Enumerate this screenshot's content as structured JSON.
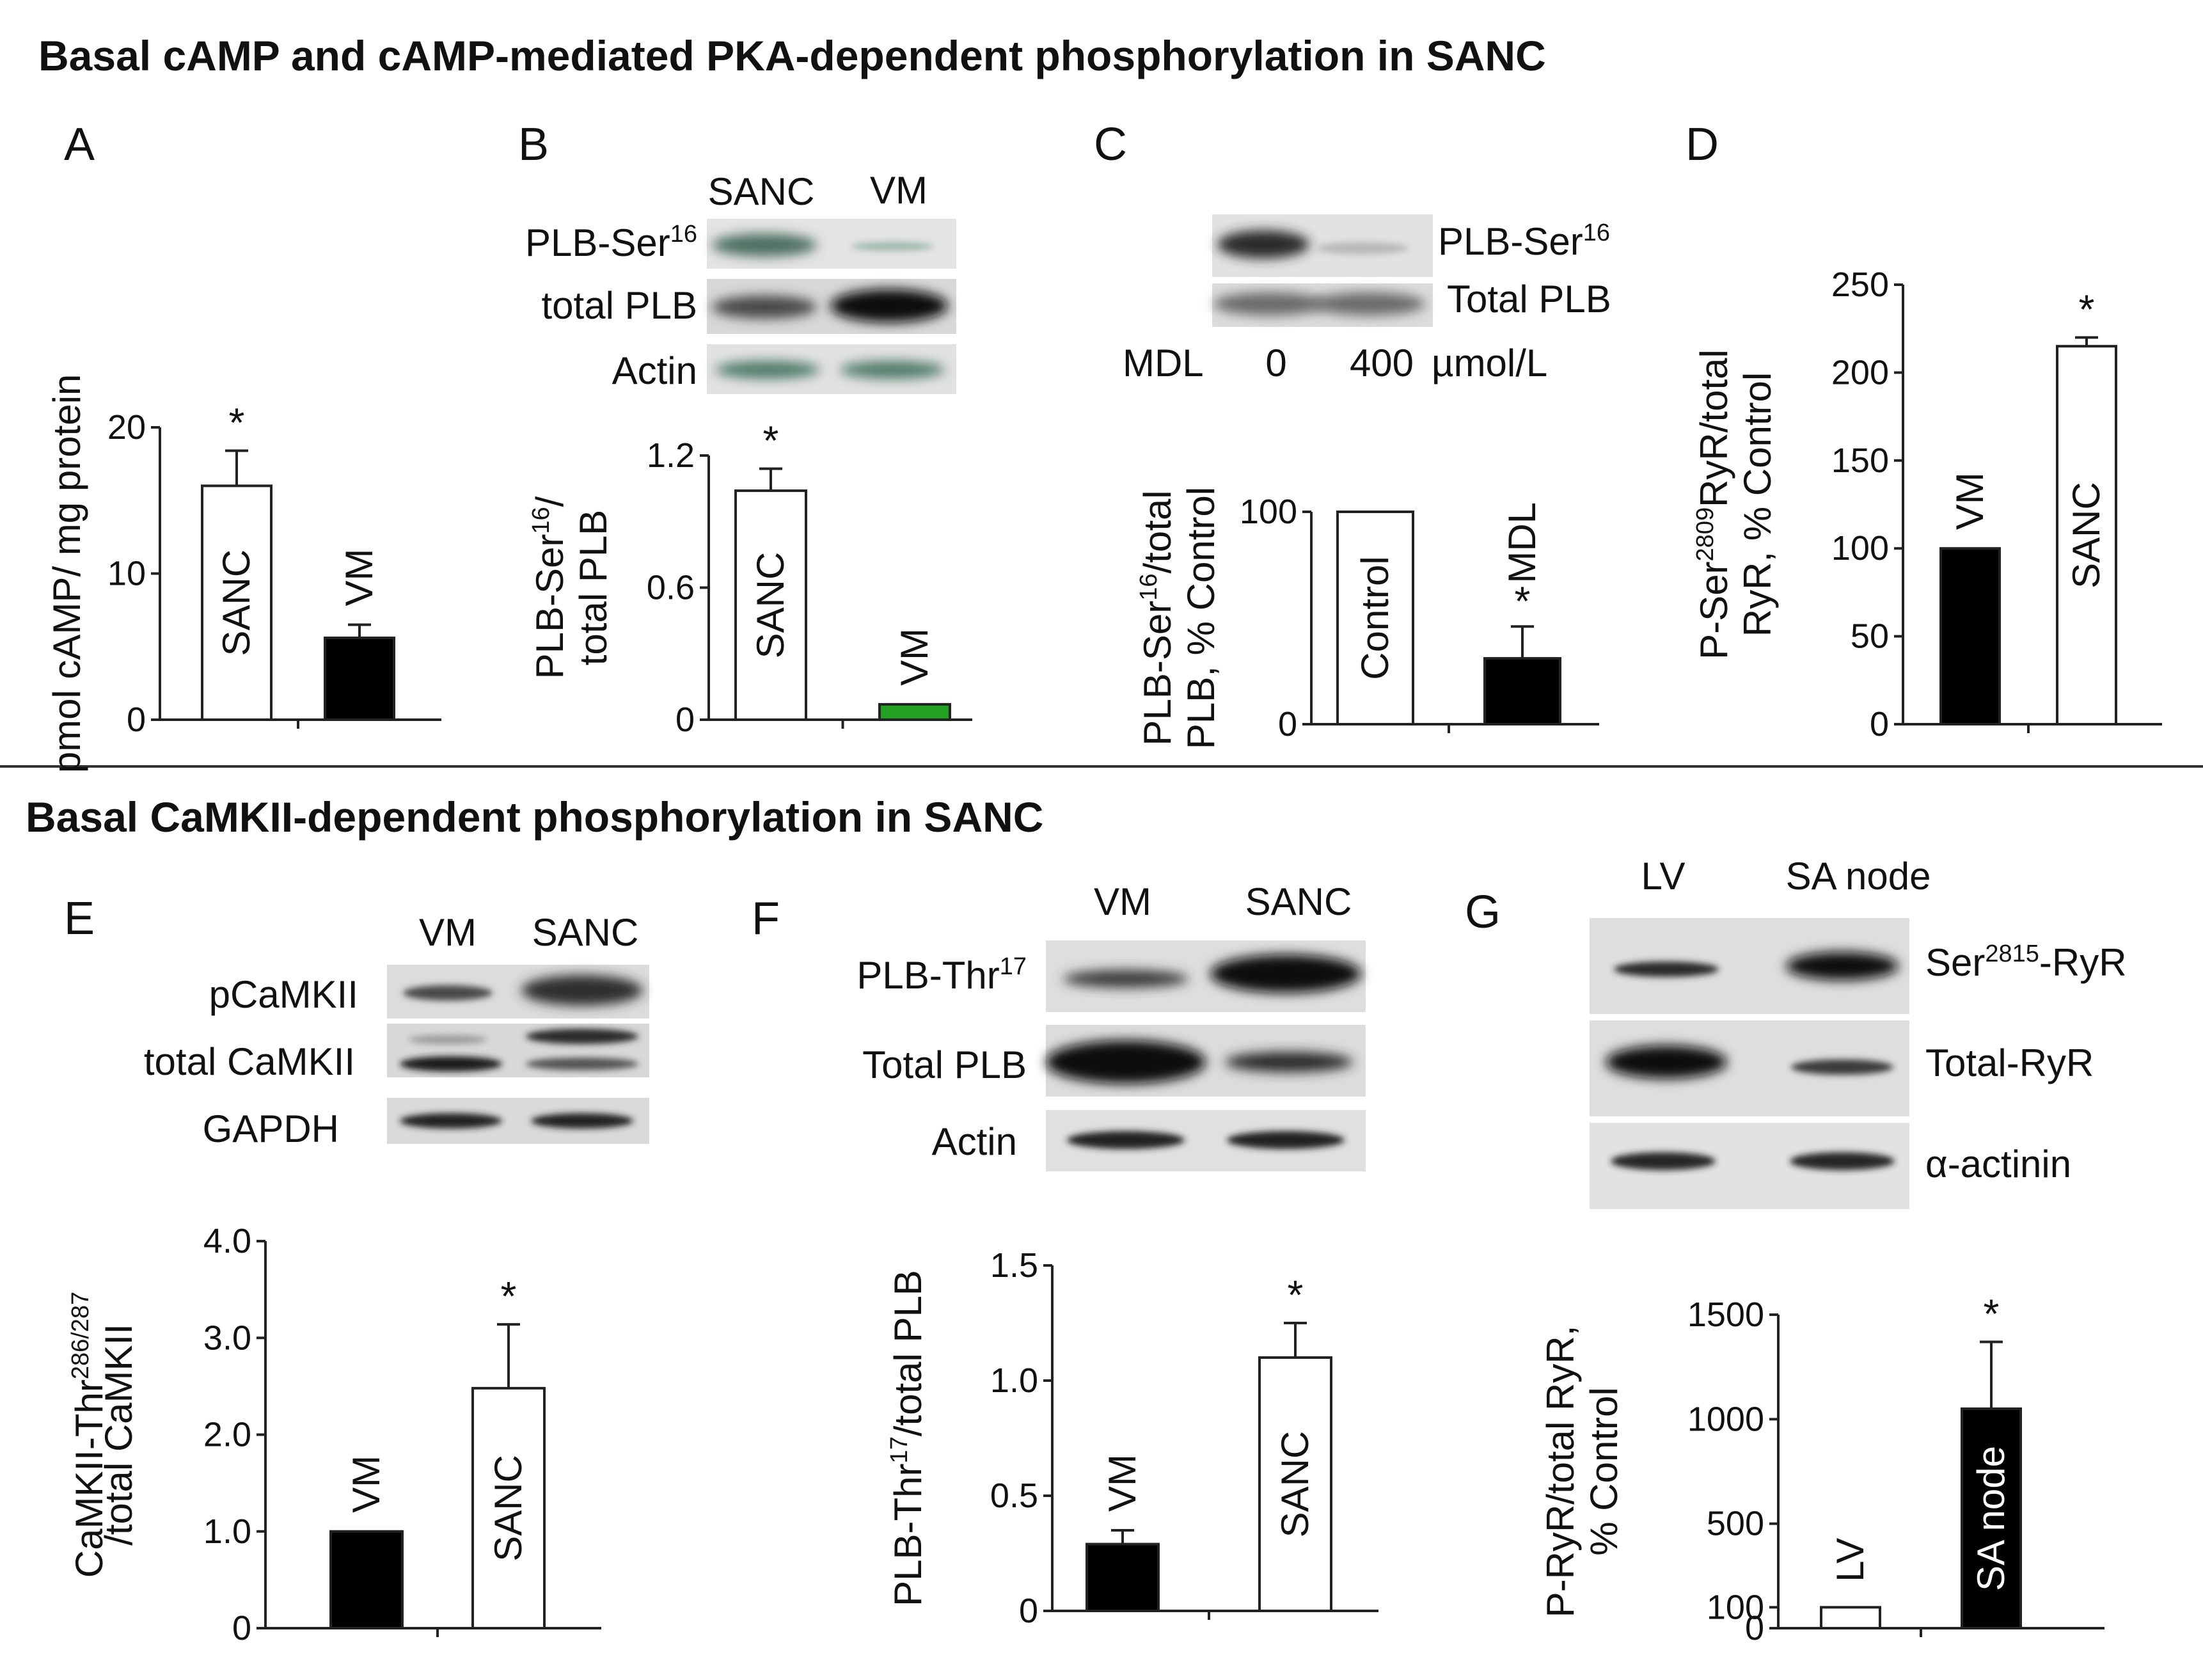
{
  "sections": {
    "top": "Basal cAMP and cAMP-mediated PKA-dependent phosphorylation in SANC",
    "bottom": "Basal CaMKII-dependent phosphorylation in SANC"
  },
  "blots": {
    "B": {
      "cols": [
        "SANC",
        "VM"
      ],
      "rows": [
        {
          "main": "PLB-Ser",
          "sup": "16"
        },
        {
          "main": "total  PLB",
          "sup": ""
        },
        {
          "main": "Actin",
          "sup": ""
        }
      ]
    },
    "C": {
      "rows": [
        {
          "main": "PLB-Ser",
          "sup": "16"
        },
        {
          "main": "Total  PLB",
          "sup": ""
        }
      ],
      "condition_label": "MDL",
      "conditions": [
        "0",
        "400"
      ],
      "unit": "µmol/L"
    },
    "E": {
      "cols": [
        "VM",
        "SANC"
      ],
      "rows": [
        {
          "main": "pCaMKII"
        },
        {
          "main": "total  CaMKII"
        },
        {
          "main": "GAPDH"
        }
      ]
    },
    "F": {
      "cols": [
        "VM",
        "SANC"
      ],
      "rows": [
        {
          "main": "PLB-Thr",
          "sup": "17"
        },
        {
          "main": "Total  PLB",
          "sup": ""
        },
        {
          "main": "Actin",
          "sup": ""
        }
      ]
    },
    "G": {
      "cols": [
        "LV",
        "SA node"
      ],
      "rows": [
        {
          "pre": "Ser",
          "sup": "2815",
          "post": "-RyR"
        },
        {
          "pre": "Total-RyR",
          "sup": "",
          "post": ""
        },
        {
          "pre": "α-actinin",
          "sup": "",
          "post": ""
        }
      ]
    }
  },
  "chart_data": [
    {
      "panel": "A",
      "type": "bar",
      "ylabel": "pmol cAMP/ mg protein",
      "ylim": [
        0,
        20
      ],
      "yticks": [
        "0",
        "10",
        "20"
      ],
      "series": [
        {
          "values": [
            16.0,
            5.6
          ],
          "errors": [
            2.4,
            0.9
          ]
        }
      ],
      "categories": [
        "SANC",
        "VM"
      ],
      "fills": [
        "#ffffff",
        "#000000"
      ],
      "significant": [
        true,
        false
      ]
    },
    {
      "panel": "B",
      "type": "bar",
      "ylabel": {
        "pre": "PLB-Ser",
        "sup": "16",
        "post": "/",
        "line2": "total PLB"
      },
      "ylim": [
        0,
        1.2
      ],
      "yticks": [
        "0",
        "0.6",
        "1.2"
      ],
      "series": [
        {
          "values": [
            1.04,
            0.07
          ],
          "errors": [
            0.1,
            0
          ]
        }
      ],
      "categories": [
        "SANC",
        "VM"
      ],
      "fills": [
        "#ffffff",
        "#22a022"
      ],
      "significant": [
        true,
        false
      ]
    },
    {
      "panel": "C",
      "type": "bar",
      "ylabel": {
        "pre": "PLB-Ser",
        "sup": "16",
        "post": "/total",
        "line2": "PLB, % Control"
      },
      "ylim": [
        0,
        100
      ],
      "yticks": [
        "0",
        "100"
      ],
      "series": [
        {
          "values": [
            100,
            31
          ],
          "errors": [
            0,
            15
          ]
        }
      ],
      "categories": [
        "Control",
        "MDL"
      ],
      "fills": [
        "#ffffff",
        "#000000"
      ],
      "significant": [
        false,
        true
      ]
    },
    {
      "panel": "D",
      "type": "bar",
      "ylabel": {
        "pre": "P-Ser",
        "sup": "2809",
        "post": "RyR/total",
        "line2": "RyR, % Control"
      },
      "ylim": [
        0,
        250
      ],
      "yticks": [
        "0",
        "50",
        "100",
        "150",
        "200",
        "250"
      ],
      "series": [
        {
          "values": [
            100,
            215
          ],
          "errors": [
            0,
            5
          ]
        }
      ],
      "categories": [
        "VM",
        "SANC"
      ],
      "fills": [
        "#000000",
        "#ffffff"
      ],
      "significant": [
        false,
        true
      ]
    },
    {
      "panel": "E",
      "type": "bar",
      "ylabel": {
        "pre": "CaMKII-Thr",
        "sup": "286/287",
        "post": "",
        "line2": "/total CaMKII"
      },
      "ylim": [
        0,
        4.0
      ],
      "yticks": [
        "0",
        "1.0",
        "2.0",
        "3.0",
        "4.0"
      ],
      "series": [
        {
          "values": [
            1.0,
            2.48
          ],
          "errors": [
            0,
            0.66
          ]
        }
      ],
      "categories": [
        "VM",
        "SANC"
      ],
      "fills": [
        "#000000",
        "#ffffff"
      ],
      "significant": [
        false,
        true
      ]
    },
    {
      "panel": "F",
      "type": "bar",
      "ylabel": {
        "pre": "PLB-Thr",
        "sup": "17",
        "post": "/total PLB",
        "line2": ""
      },
      "ylim": [
        0,
        1.5
      ],
      "yticks": [
        "0",
        "0.5",
        "1.0",
        "1.5"
      ],
      "series": [
        {
          "values": [
            0.29,
            1.1
          ],
          "errors": [
            0.06,
            0.15
          ]
        }
      ],
      "categories": [
        "VM",
        "SANC"
      ],
      "fills": [
        "#000000",
        "#ffffff"
      ],
      "significant": [
        false,
        true
      ]
    },
    {
      "panel": "G",
      "type": "bar",
      "ylabel": {
        "pre": "P-RyR/total RyR,",
        "sup": "",
        "post": "",
        "line2": "% Control"
      },
      "ylim": [
        0,
        1500
      ],
      "yticks": [
        "0",
        "100",
        "500",
        "1000",
        "1500"
      ],
      "series": [
        {
          "values": [
            100,
            1050
          ],
          "errors": [
            0,
            320
          ]
        }
      ],
      "categories": [
        "LV",
        "SA node"
      ],
      "fills": [
        "#ffffff",
        "#000000"
      ],
      "significant": [
        false,
        true
      ]
    }
  ]
}
